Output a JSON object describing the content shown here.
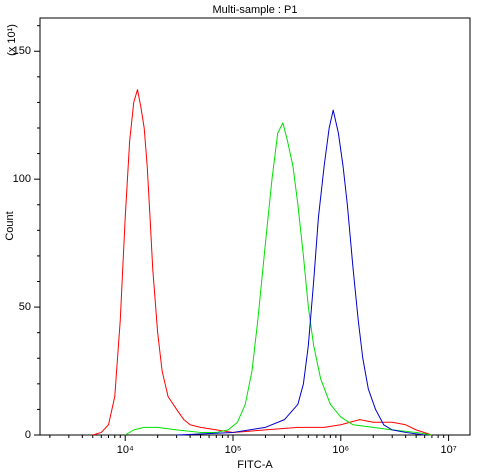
{
  "chart_data": {
    "type": "line",
    "title": "Multi-sample : P1",
    "xlabel": "FITC-A",
    "ylabel": "Count",
    "y_multiplier_label": "(x 10¹)",
    "xscale": "log",
    "xlim": [
      1620,
      15800000
    ],
    "ylim": [
      0,
      163
    ],
    "xticks": [
      {
        "value": 10000,
        "label": "10⁴"
      },
      {
        "value": 100000,
        "label": "10⁵"
      },
      {
        "value": 1000000,
        "label": "10⁶"
      },
      {
        "value": 10000000,
        "label": "10⁷"
      }
    ],
    "xminorticks": [
      2000,
      3000,
      4000,
      5000,
      6000,
      7000,
      8000,
      9000,
      20000,
      30000,
      40000,
      50000,
      60000,
      70000,
      80000,
      90000,
      200000,
      300000,
      400000,
      500000,
      600000,
      700000,
      800000,
      900000,
      2000000,
      3000000,
      4000000,
      5000000,
      6000000,
      7000000,
      8000000,
      9000000
    ],
    "yticks": [
      0,
      50,
      100,
      150
    ],
    "yminorticks": [
      10,
      20,
      30,
      40,
      60,
      70,
      80,
      90,
      110,
      120,
      130,
      140,
      160
    ],
    "series": [
      {
        "color": "#ff0000",
        "x": [
          5000,
          6000,
          7000,
          8000,
          9000,
          10000,
          11000,
          12000,
          13000,
          14000,
          15000,
          16000,
          17000,
          18000,
          20000,
          22000,
          25000,
          30000,
          35000,
          40000,
          50000,
          70000,
          100000,
          200000,
          400000,
          700000,
          1000000,
          1500000,
          2000000,
          3000000,
          4000000,
          5000000,
          7000000
        ],
        "values": [
          0,
          1,
          4,
          15,
          45,
          85,
          115,
          130,
          135,
          128,
          120,
          105,
          85,
          65,
          40,
          25,
          15,
          10,
          6,
          4,
          3,
          2,
          1,
          2,
          3,
          3,
          4,
          6,
          5,
          5,
          4,
          2,
          0
        ]
      },
      {
        "color": "#00e000",
        "x": [
          10000,
          12000,
          15000,
          20000,
          30000,
          50000,
          70000,
          90000,
          110000,
          130000,
          150000,
          170000,
          200000,
          230000,
          260000,
          290000,
          320000,
          360000,
          400000,
          450000,
          500000,
          560000,
          650000,
          800000,
          1000000,
          1300000,
          2000000,
          3000000,
          5000000,
          7000000
        ],
        "values": [
          0,
          2,
          3,
          3,
          2,
          1,
          1,
          2,
          5,
          12,
          25,
          45,
          75,
          100,
          118,
          122,
          115,
          105,
          90,
          70,
          50,
          35,
          22,
          12,
          7,
          4,
          3,
          2,
          1,
          0
        ]
      },
      {
        "color": "#0000cc",
        "x": [
          30000,
          100000,
          200000,
          300000,
          400000,
          450000,
          500000,
          560000,
          620000,
          700000,
          780000,
          850000,
          950000,
          1050000,
          1150000,
          1300000,
          1450000,
          1600000,
          1800000,
          2100000,
          2500000,
          3000000,
          4000000,
          6000000
        ],
        "values": [
          0,
          1,
          3,
          6,
          12,
          20,
          35,
          60,
          85,
          105,
          120,
          127,
          118,
          105,
          90,
          65,
          45,
          30,
          18,
          10,
          4,
          2,
          1,
          0
        ]
      }
    ]
  }
}
